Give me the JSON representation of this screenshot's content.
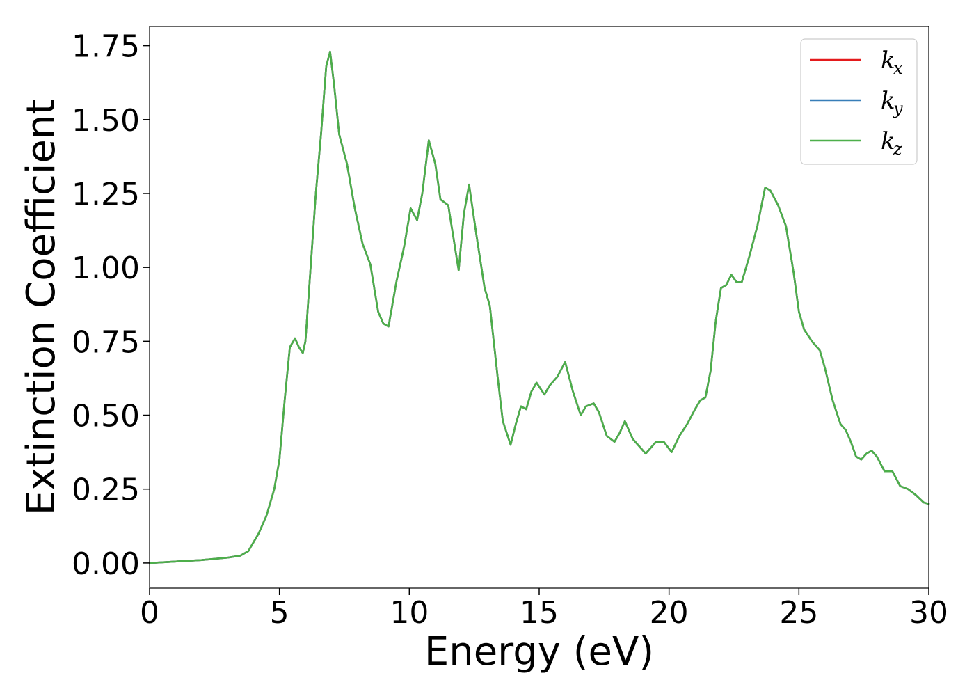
{
  "chart_data": {
    "type": "line",
    "title": "",
    "xlabel": "Energy (eV)",
    "ylabel": "Extinction Coefficient",
    "xlim": [
      0,
      30
    ],
    "ylim": [
      -0.085,
      1.815
    ],
    "xticks": [
      0,
      5,
      10,
      15,
      20,
      25,
      30
    ],
    "xtick_labels": [
      "0",
      "5",
      "10",
      "15",
      "20",
      "25",
      "30"
    ],
    "yticks": [
      0,
      0.25,
      0.5,
      0.75,
      1.0,
      1.25,
      1.5,
      1.75
    ],
    "ytick_labels": [
      "0.00",
      "0.25",
      "0.50",
      "0.75",
      "1.00",
      "1.25",
      "1.50",
      "1.75"
    ],
    "grid": false,
    "legend_position": "top-right",
    "series": [
      {
        "name": "k_x",
        "label_base": "k",
        "label_sub": "x",
        "color": "#e41a1c",
        "x": [
          0,
          1,
          2,
          3,
          3.5,
          3.8,
          4.0,
          4.2,
          4.5,
          4.8,
          5.0,
          5.2,
          5.4,
          5.6,
          5.75,
          5.9,
          6.0,
          6.2,
          6.4,
          6.6,
          6.8,
          6.95,
          7.1,
          7.3,
          7.6,
          7.9,
          8.2,
          8.5,
          8.8,
          9.0,
          9.2,
          9.5,
          9.8,
          10.05,
          10.3,
          10.5,
          10.75,
          11.0,
          11.2,
          11.5,
          11.7,
          11.9,
          12.1,
          12.3,
          12.6,
          12.9,
          13.1,
          13.4,
          13.6,
          13.9,
          14.1,
          14.3,
          14.5,
          14.7,
          14.9,
          15.2,
          15.4,
          15.7,
          16.0,
          16.3,
          16.6,
          16.8,
          17.1,
          17.3,
          17.6,
          17.9,
          18.1,
          18.3,
          18.6,
          18.9,
          19.1,
          19.5,
          19.8,
          20.1,
          20.4,
          20.7,
          21.0,
          21.2,
          21.4,
          21.6,
          21.8,
          22.0,
          22.2,
          22.4,
          22.6,
          22.8,
          23.1,
          23.4,
          23.7,
          23.9,
          24.2,
          24.5,
          24.8,
          25.0,
          25.2,
          25.5,
          25.8,
          26.0,
          26.3,
          26.6,
          26.8,
          27.0,
          27.2,
          27.4,
          27.6,
          27.8,
          28.0,
          28.3,
          28.6,
          28.9,
          29.2,
          29.5,
          29.8,
          30.0
        ],
        "y": [
          0.0,
          0.005,
          0.01,
          0.018,
          0.025,
          0.04,
          0.07,
          0.1,
          0.16,
          0.25,
          0.35,
          0.55,
          0.73,
          0.76,
          0.73,
          0.71,
          0.75,
          1.0,
          1.25,
          1.45,
          1.68,
          1.73,
          1.62,
          1.45,
          1.35,
          1.2,
          1.08,
          1.01,
          0.85,
          0.81,
          0.8,
          0.95,
          1.07,
          1.2,
          1.16,
          1.25,
          1.43,
          1.35,
          1.23,
          1.21,
          1.1,
          0.99,
          1.18,
          1.28,
          1.1,
          0.93,
          0.87,
          0.63,
          0.48,
          0.4,
          0.47,
          0.53,
          0.52,
          0.58,
          0.61,
          0.57,
          0.6,
          0.63,
          0.68,
          0.58,
          0.5,
          0.53,
          0.54,
          0.51,
          0.43,
          0.41,
          0.44,
          0.48,
          0.42,
          0.39,
          0.37,
          0.41,
          0.41,
          0.375,
          0.43,
          0.47,
          0.52,
          0.55,
          0.56,
          0.65,
          0.82,
          0.93,
          0.94,
          0.975,
          0.95,
          0.95,
          1.04,
          1.14,
          1.27,
          1.26,
          1.21,
          1.14,
          0.98,
          0.85,
          0.79,
          0.75,
          0.72,
          0.66,
          0.55,
          0.47,
          0.45,
          0.41,
          0.36,
          0.35,
          0.37,
          0.38,
          0.36,
          0.31,
          0.31,
          0.26,
          0.25,
          0.23,
          0.205,
          0.2
        ]
      },
      {
        "name": "k_y",
        "label_base": "k",
        "label_sub": "y",
        "color": "#377eb8",
        "x": [
          0,
          1,
          2,
          3,
          3.5,
          3.8,
          4.0,
          4.2,
          4.5,
          4.8,
          5.0,
          5.2,
          5.4,
          5.6,
          5.75,
          5.9,
          6.0,
          6.2,
          6.4,
          6.6,
          6.8,
          6.95,
          7.1,
          7.3,
          7.6,
          7.9,
          8.2,
          8.5,
          8.8,
          9.0,
          9.2,
          9.5,
          9.8,
          10.05,
          10.3,
          10.5,
          10.75,
          11.0,
          11.2,
          11.5,
          11.7,
          11.9,
          12.1,
          12.3,
          12.6,
          12.9,
          13.1,
          13.4,
          13.6,
          13.9,
          14.1,
          14.3,
          14.5,
          14.7,
          14.9,
          15.2,
          15.4,
          15.7,
          16.0,
          16.3,
          16.6,
          16.8,
          17.1,
          17.3,
          17.6,
          17.9,
          18.1,
          18.3,
          18.6,
          18.9,
          19.1,
          19.5,
          19.8,
          20.1,
          20.4,
          20.7,
          21.0,
          21.2,
          21.4,
          21.6,
          21.8,
          22.0,
          22.2,
          22.4,
          22.6,
          22.8,
          23.1,
          23.4,
          23.7,
          23.9,
          24.2,
          24.5,
          24.8,
          25.0,
          25.2,
          25.5,
          25.8,
          26.0,
          26.3,
          26.6,
          26.8,
          27.0,
          27.2,
          27.4,
          27.6,
          27.8,
          28.0,
          28.3,
          28.6,
          28.9,
          29.2,
          29.5,
          29.8,
          30.0
        ],
        "y": [
          0.0,
          0.005,
          0.01,
          0.018,
          0.025,
          0.04,
          0.07,
          0.1,
          0.16,
          0.25,
          0.35,
          0.55,
          0.73,
          0.76,
          0.73,
          0.71,
          0.75,
          1.0,
          1.25,
          1.45,
          1.68,
          1.73,
          1.62,
          1.45,
          1.35,
          1.2,
          1.08,
          1.01,
          0.85,
          0.81,
          0.8,
          0.95,
          1.07,
          1.2,
          1.16,
          1.25,
          1.43,
          1.35,
          1.23,
          1.21,
          1.1,
          0.99,
          1.18,
          1.28,
          1.1,
          0.93,
          0.87,
          0.63,
          0.48,
          0.4,
          0.47,
          0.53,
          0.52,
          0.58,
          0.61,
          0.57,
          0.6,
          0.63,
          0.68,
          0.58,
          0.5,
          0.53,
          0.54,
          0.51,
          0.43,
          0.41,
          0.44,
          0.48,
          0.42,
          0.39,
          0.37,
          0.41,
          0.41,
          0.375,
          0.43,
          0.47,
          0.52,
          0.55,
          0.56,
          0.65,
          0.82,
          0.93,
          0.94,
          0.975,
          0.95,
          0.95,
          1.04,
          1.14,
          1.27,
          1.26,
          1.21,
          1.14,
          0.98,
          0.85,
          0.79,
          0.75,
          0.72,
          0.66,
          0.55,
          0.47,
          0.45,
          0.41,
          0.36,
          0.35,
          0.37,
          0.38,
          0.36,
          0.31,
          0.31,
          0.26,
          0.25,
          0.23,
          0.205,
          0.2
        ]
      },
      {
        "name": "k_z",
        "label_base": "k",
        "label_sub": "z",
        "color": "#4daf4a",
        "x": [
          0,
          1,
          2,
          3,
          3.5,
          3.8,
          4.0,
          4.2,
          4.5,
          4.8,
          5.0,
          5.2,
          5.4,
          5.6,
          5.75,
          5.9,
          6.0,
          6.2,
          6.4,
          6.6,
          6.8,
          6.95,
          7.1,
          7.3,
          7.6,
          7.9,
          8.2,
          8.5,
          8.8,
          9.0,
          9.2,
          9.5,
          9.8,
          10.05,
          10.3,
          10.5,
          10.75,
          11.0,
          11.2,
          11.5,
          11.7,
          11.9,
          12.1,
          12.3,
          12.6,
          12.9,
          13.1,
          13.4,
          13.6,
          13.9,
          14.1,
          14.3,
          14.5,
          14.7,
          14.9,
          15.2,
          15.4,
          15.7,
          16.0,
          16.3,
          16.6,
          16.8,
          17.1,
          17.3,
          17.6,
          17.9,
          18.1,
          18.3,
          18.6,
          18.9,
          19.1,
          19.5,
          19.8,
          20.1,
          20.4,
          20.7,
          21.0,
          21.2,
          21.4,
          21.6,
          21.8,
          22.0,
          22.2,
          22.4,
          22.6,
          22.8,
          23.1,
          23.4,
          23.7,
          23.9,
          24.2,
          24.5,
          24.8,
          25.0,
          25.2,
          25.5,
          25.8,
          26.0,
          26.3,
          26.6,
          26.8,
          27.0,
          27.2,
          27.4,
          27.6,
          27.8,
          28.0,
          28.3,
          28.6,
          28.9,
          29.2,
          29.5,
          29.8,
          30.0
        ],
        "y": [
          0.0,
          0.005,
          0.01,
          0.018,
          0.025,
          0.04,
          0.07,
          0.1,
          0.16,
          0.25,
          0.35,
          0.55,
          0.73,
          0.76,
          0.73,
          0.71,
          0.75,
          1.0,
          1.25,
          1.45,
          1.68,
          1.73,
          1.62,
          1.45,
          1.35,
          1.2,
          1.08,
          1.01,
          0.85,
          0.81,
          0.8,
          0.95,
          1.07,
          1.2,
          1.16,
          1.25,
          1.43,
          1.35,
          1.23,
          1.21,
          1.1,
          0.99,
          1.18,
          1.28,
          1.1,
          0.93,
          0.87,
          0.63,
          0.48,
          0.4,
          0.47,
          0.53,
          0.52,
          0.58,
          0.61,
          0.57,
          0.6,
          0.63,
          0.68,
          0.58,
          0.5,
          0.53,
          0.54,
          0.51,
          0.43,
          0.41,
          0.44,
          0.48,
          0.42,
          0.39,
          0.37,
          0.41,
          0.41,
          0.375,
          0.43,
          0.47,
          0.52,
          0.55,
          0.56,
          0.65,
          0.82,
          0.93,
          0.94,
          0.975,
          0.95,
          0.95,
          1.04,
          1.14,
          1.27,
          1.26,
          1.21,
          1.14,
          0.98,
          0.85,
          0.79,
          0.75,
          0.72,
          0.66,
          0.55,
          0.47,
          0.45,
          0.41,
          0.36,
          0.35,
          0.37,
          0.38,
          0.36,
          0.31,
          0.31,
          0.26,
          0.25,
          0.23,
          0.205,
          0.2
        ]
      }
    ]
  }
}
